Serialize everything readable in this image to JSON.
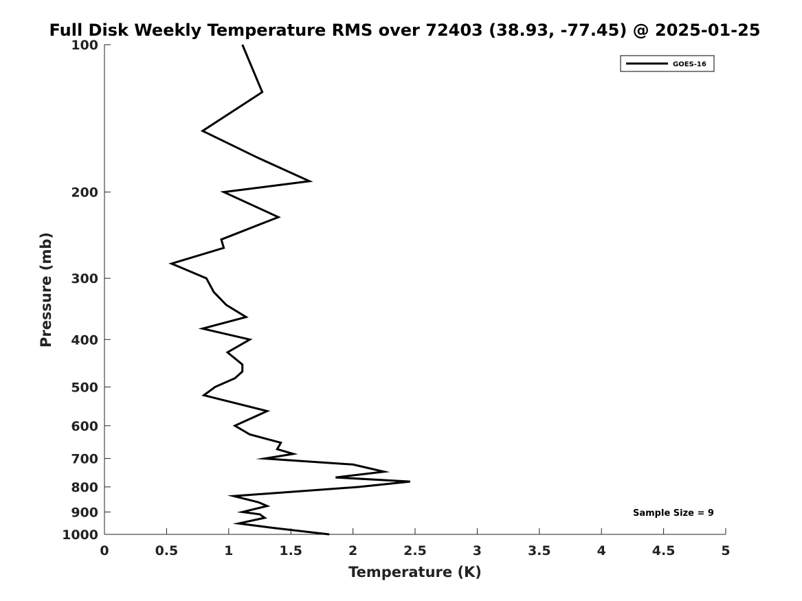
{
  "chart_data": {
    "type": "line",
    "title": "Full Disk Weekly Temperature RMS over 72403 (38.93, -77.45) @ 2025-01-25",
    "xlabel": "Temperature (K)",
    "ylabel": "Pressure (mb)",
    "xlim": [
      0,
      5
    ],
    "ylim": [
      100,
      1000
    ],
    "y_scale": "log",
    "y_reversed": true,
    "grid": false,
    "legend_position": "top-right",
    "x_ticks": [
      "0",
      "0.5",
      "1",
      "1.5",
      "2",
      "2.5",
      "3",
      "3.5",
      "4",
      "4.5",
      "5"
    ],
    "y_ticks": [
      "100",
      "200",
      "300",
      "400",
      "500",
      "600",
      "700",
      "800",
      "900",
      "1000"
    ],
    "series": [
      {
        "name": "GOES-16",
        "color": "#000000",
        "points": [
          [
            1.11,
            100
          ],
          [
            1.27,
            125
          ],
          [
            0.79,
            150
          ],
          [
            1.23,
            170
          ],
          [
            1.65,
            190
          ],
          [
            0.96,
            200
          ],
          [
            1.4,
            225
          ],
          [
            0.94,
            250
          ],
          [
            0.96,
            260
          ],
          [
            0.54,
            280
          ],
          [
            0.82,
            300
          ],
          [
            0.88,
            320
          ],
          [
            0.98,
            340
          ],
          [
            1.14,
            360
          ],
          [
            0.79,
            380
          ],
          [
            1.17,
            400
          ],
          [
            0.99,
            425
          ],
          [
            1.11,
            450
          ],
          [
            1.11,
            465
          ],
          [
            1.05,
            480
          ],
          [
            0.89,
            500
          ],
          [
            0.8,
            520
          ],
          [
            1.31,
            560
          ],
          [
            1.05,
            600
          ],
          [
            1.17,
            625
          ],
          [
            1.42,
            650
          ],
          [
            1.39,
            670
          ],
          [
            1.52,
            685
          ],
          [
            1.29,
            700
          ],
          [
            2.0,
            720
          ],
          [
            2.25,
            745
          ],
          [
            1.86,
            765
          ],
          [
            2.46,
            780
          ],
          [
            2.05,
            800
          ],
          [
            1.04,
            835
          ],
          [
            1.24,
            860
          ],
          [
            1.31,
            875
          ],
          [
            1.11,
            900
          ],
          [
            1.25,
            910
          ],
          [
            1.29,
            925
          ],
          [
            1.08,
            950
          ],
          [
            1.36,
            970
          ],
          [
            1.81,
            1000
          ]
        ]
      }
    ],
    "annotation": "Sample Size = 9"
  }
}
